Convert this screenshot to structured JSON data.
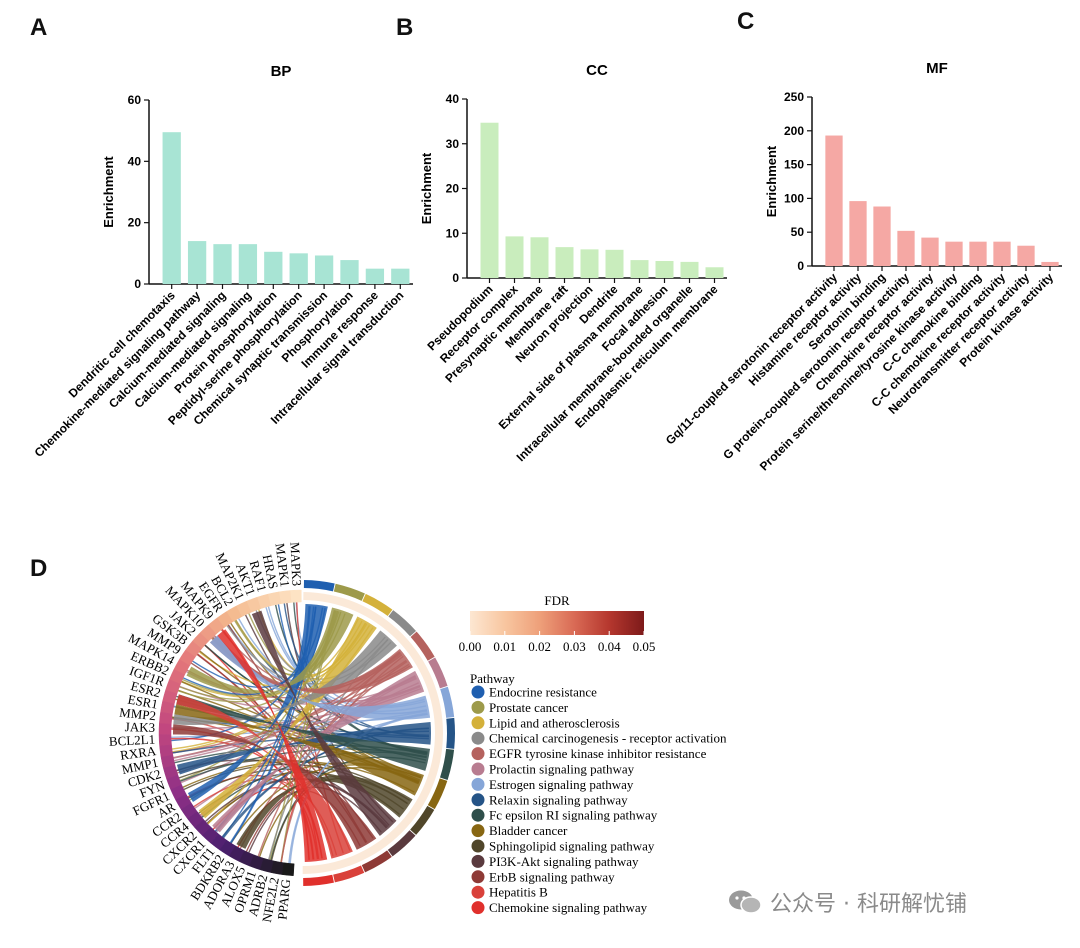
{
  "panels": {
    "A": "A",
    "B": "B",
    "C": "C",
    "D": "D"
  },
  "chart_data": [
    {
      "type": "bar",
      "title": "BP",
      "ylabel": "Enrichment",
      "ylim": [
        0,
        60
      ],
      "yticks": [
        0,
        20,
        40,
        60
      ],
      "color": "#a8e4d4",
      "categories": [
        "Dendritic cell chemotaxis",
        "Chemokine-mediated signaling pathway",
        "Calcium-mediated signaling",
        "Calcium-mediated signaling",
        "Protein phosphorylation",
        "Peptidyl-serine phosphorylation",
        "Chemical synaptic transmission",
        "Phosphorylation",
        "Immune response",
        "Intracellular signal transduction"
      ],
      "values": [
        49.5,
        14,
        13,
        13,
        10.5,
        10,
        9.3,
        7.8,
        5,
        5
      ]
    },
    {
      "type": "bar",
      "title": "CC",
      "ylabel": "Enrichment",
      "ylim": [
        0,
        40
      ],
      "yticks": [
        0,
        10,
        20,
        30,
        40
      ],
      "color": "#c9edbd",
      "categories": [
        "Pseudopodium",
        "Receptor complex",
        "Presynaptic membrane",
        "Membrane raft",
        "Neuron projection",
        "Dendrite",
        "External side of plasma membrane",
        "Focal adhesion",
        "Intracellular membrane-bounded organelle",
        "Endoplasmic reticulum membrane"
      ],
      "values": [
        34.7,
        9.3,
        9.1,
        6.9,
        6.4,
        6.3,
        4,
        3.8,
        3.6,
        2.4
      ]
    },
    {
      "type": "bar",
      "title": "MF",
      "ylabel": "Enrichment",
      "ylim": [
        0,
        250
      ],
      "yticks": [
        0,
        50,
        100,
        150,
        200,
        250
      ],
      "color": "#f5a8a4",
      "categories": [
        "Gq/11-coupled serotonin receptor activity",
        "Histamine receptor activity",
        "Serotonin binding",
        "G protein-coupled serotonin receptor activity",
        "Chemokine receptor activity",
        "Protein serine/threonine/tyrosine kinase activity",
        "C-C chemokine binding",
        "C-C chemokine receptor activity",
        "Neurotransmitter receptor activity",
        "Protein kinase activity"
      ],
      "values": [
        193,
        96,
        88,
        52,
        42,
        36,
        36,
        36,
        30,
        6
      ]
    },
    {
      "type": "chord",
      "genes": [
        "MAPK3",
        "MAPK1",
        "HRAS",
        "RAF1",
        "AKT1",
        "MAP2K1",
        "BCL2",
        "EGFR",
        "MAPK9",
        "MAPK10",
        "JAK2",
        "GSK3B",
        "MMP9",
        "MAPK14",
        "ERBB2",
        "IGF1R",
        "ESR2",
        "ESR1",
        "MMP2",
        "JAK3",
        "BCL2L1",
        "RXRA",
        "MMP1",
        "CDK2",
        "FYN",
        "FGFR1",
        "AR",
        "CCR2",
        "CCR4",
        "CXCR2",
        "CXCR1",
        "FLT1",
        "BDKRB2",
        "ADORA3",
        "ALOX5",
        "OPRM1",
        "ADRB2",
        "NFE2L2",
        "PPARG"
      ],
      "fdr_legend": {
        "title": "FDR",
        "ticks": [
          "0.00",
          "0.01",
          "0.02",
          "0.03",
          "0.04",
          "0.05"
        ]
      },
      "pathway_legend": {
        "title": "Pathway",
        "items": [
          {
            "name": "Endocrine resistance",
            "color": "#1f5fb0"
          },
          {
            "name": "Prostate cancer",
            "color": "#9d9a4a"
          },
          {
            "name": "Lipid and atherosclerosis",
            "color": "#d4b13a"
          },
          {
            "name": "Chemical carcinogenesis - receptor activation",
            "color": "#8a8a8a"
          },
          {
            "name": "EGFR tyrosine kinase inhibitor resistance",
            "color": "#b5625e"
          },
          {
            "name": "Prolactin signaling pathway",
            "color": "#b87c90"
          },
          {
            "name": "Estrogen signaling pathway",
            "color": "#86a6d8"
          },
          {
            "name": "Relaxin signaling pathway",
            "color": "#255487"
          },
          {
            "name": "Fc epsilon RI signaling pathway",
            "color": "#2f4f4b"
          },
          {
            "name": "Bladder cancer",
            "color": "#876612"
          },
          {
            "name": "Sphingolipid signaling pathway",
            "color": "#50462a"
          },
          {
            "name": "PI3K-Akt signaling pathway",
            "color": "#5a3a3e"
          },
          {
            "name": "ErbB signaling pathway",
            "color": "#8e3a36"
          },
          {
            "name": "Hepatitis B",
            "color": "#d9413a"
          },
          {
            "name": "Chemokine signaling pathway",
            "color": "#e0302c"
          }
        ]
      }
    }
  ],
  "watermark": "公众号 · 科研解忧铺"
}
